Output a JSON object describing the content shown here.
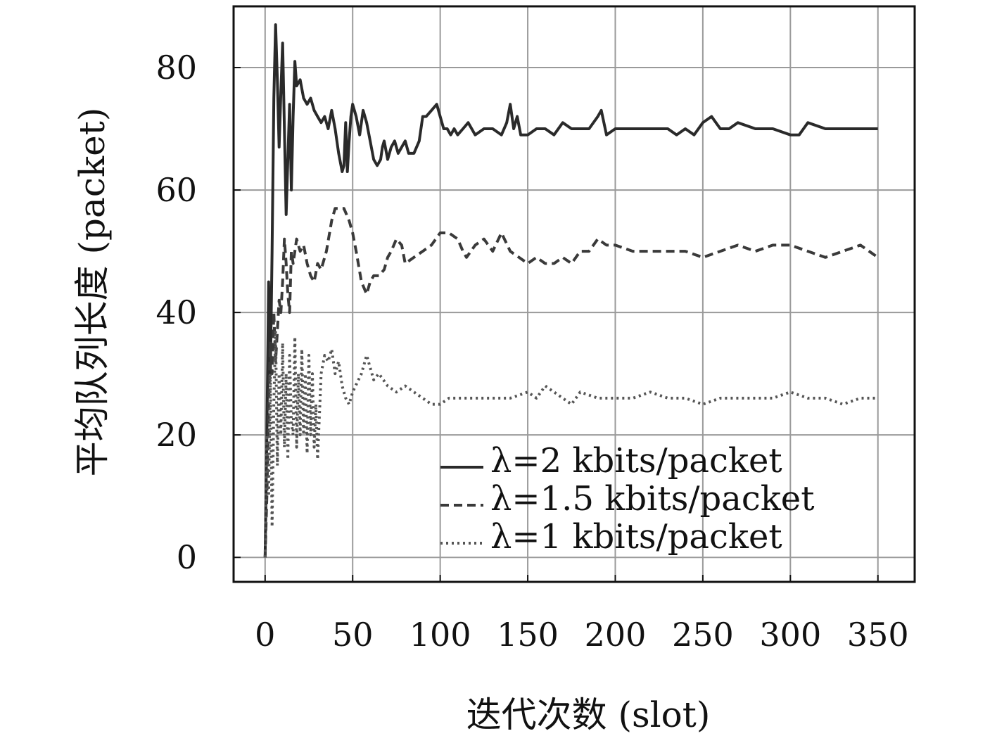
{
  "chart_data": {
    "type": "line",
    "xlabel": "迭代次数 (slot)",
    "ylabel": "平均队列长度 (packet)",
    "xlim": [
      -18,
      371
    ],
    "ylim": [
      -4,
      90
    ],
    "xticks": [
      0,
      50,
      100,
      150,
      200,
      250,
      300,
      350
    ],
    "yticks": [
      0,
      20,
      40,
      60,
      80
    ],
    "xtick_labels": [
      "0",
      "50",
      "100",
      "150",
      "200",
      "250",
      "300",
      "350"
    ],
    "ytick_labels": [
      "0",
      "20",
      "40",
      "60",
      "80"
    ],
    "grid": true,
    "legend_position": "lower-right",
    "series": [
      {
        "name": "λ=2 kbits/packet",
        "style": "solid",
        "color": "#2a2a2a",
        "x": [
          0,
          1,
          2,
          3,
          4,
          5,
          6,
          7,
          8,
          9,
          10,
          11,
          12,
          13,
          14,
          15,
          16,
          17,
          18,
          20,
          22,
          24,
          26,
          28,
          30,
          32,
          34,
          36,
          38,
          40,
          42,
          44,
          45,
          46,
          47,
          48,
          49,
          50,
          52,
          54,
          56,
          58,
          60,
          62,
          64,
          66,
          67,
          68,
          70,
          72,
          74,
          76,
          78,
          80,
          82,
          85,
          88,
          90,
          92,
          95,
          98,
          100,
          102,
          104,
          106,
          108,
          110,
          113,
          116,
          120,
          125,
          130,
          135,
          138,
          140,
          142,
          144,
          146,
          150,
          155,
          160,
          165,
          170,
          175,
          180,
          185,
          190,
          192,
          195,
          200,
          210,
          220,
          230,
          235,
          240,
          245,
          250,
          255,
          260,
          265,
          270,
          280,
          290,
          300,
          305,
          310,
          320,
          330,
          340,
          350
        ],
        "y": [
          0,
          20,
          45,
          30,
          50,
          75,
          87,
          78,
          67,
          76,
          84,
          70,
          56,
          65,
          74,
          60,
          72,
          81,
          77,
          78,
          75,
          74,
          75,
          73,
          72,
          71,
          72,
          70,
          73,
          70,
          66,
          63,
          64,
          71,
          63,
          68,
          72,
          74,
          72,
          69,
          73,
          71,
          68,
          65,
          64,
          65,
          67,
          68,
          65,
          67,
          68,
          66,
          67,
          68,
          66,
          66,
          68,
          72,
          72,
          73,
          74,
          72,
          70,
          70,
          69,
          70,
          69,
          70,
          71,
          69,
          70,
          70,
          69,
          71,
          74,
          70,
          72,
          69,
          69,
          70,
          70,
          69,
          71,
          70,
          70,
          70,
          72,
          73,
          69,
          70,
          70,
          70,
          70,
          69,
          70,
          69,
          71,
          72,
          70,
          70,
          71,
          70,
          70,
          69,
          69,
          71,
          70,
          70,
          70,
          70
        ]
      },
      {
        "name": "λ=1.5 kbits/packet",
        "style": "dashed",
        "color": "#3a3a3a",
        "x": [
          0,
          1,
          2,
          3,
          4,
          5,
          6,
          7,
          8,
          9,
          10,
          11,
          12,
          13,
          14,
          15,
          16,
          18,
          20,
          22,
          24,
          26,
          28,
          30,
          32,
          35,
          38,
          40,
          42,
          45,
          48,
          50,
          52,
          55,
          58,
          60,
          62,
          65,
          68,
          70,
          72,
          75,
          78,
          80,
          85,
          90,
          95,
          100,
          105,
          110,
          113,
          115,
          120,
          125,
          130,
          135,
          140,
          145,
          150,
          155,
          160,
          165,
          170,
          175,
          180,
          185,
          190,
          195,
          200,
          210,
          220,
          230,
          240,
          250,
          260,
          270,
          280,
          290,
          300,
          310,
          320,
          330,
          340,
          350
        ],
        "y": [
          0,
          10,
          25,
          35,
          30,
          40,
          32,
          37,
          42,
          40,
          45,
          52,
          48,
          43,
          40,
          50,
          48,
          52,
          50,
          51,
          48,
          46,
          45,
          48,
          47,
          50,
          55,
          57,
          57,
          57,
          55,
          53,
          50,
          45,
          43,
          45,
          46,
          46,
          47,
          49,
          50,
          52,
          51,
          48,
          49,
          50,
          51,
          53,
          53,
          52,
          50,
          49,
          51,
          52,
          50,
          53,
          50,
          49,
          48,
          49,
          48,
          48,
          49,
          48,
          50,
          50,
          52,
          51,
          51,
          50,
          50,
          50,
          50,
          49,
          50,
          51,
          50,
          51,
          51,
          50,
          49,
          50,
          51,
          49
        ]
      },
      {
        "name": "λ=1 kbits/packet",
        "style": "dotted",
        "color": "#555555",
        "x": [
          0,
          1,
          2,
          3,
          4,
          5,
          6,
          7,
          8,
          9,
          10,
          11,
          12,
          13,
          14,
          15,
          16,
          17,
          18,
          19,
          20,
          21,
          22,
          23,
          24,
          25,
          26,
          27,
          28,
          29,
          30,
          32,
          34,
          36,
          38,
          40,
          42,
          44,
          46,
          48,
          50,
          55,
          58,
          60,
          62,
          65,
          70,
          75,
          80,
          85,
          90,
          95,
          100,
          105,
          110,
          115,
          120,
          130,
          140,
          150,
          155,
          160,
          165,
          170,
          175,
          180,
          190,
          200,
          210,
          220,
          230,
          240,
          250,
          260,
          270,
          280,
          290,
          300,
          310,
          320,
          330,
          340,
          350
        ],
        "y": [
          0,
          20,
          10,
          30,
          5,
          25,
          37,
          15,
          30,
          20,
          35,
          18,
          30,
          16,
          33,
          22,
          20,
          36,
          18,
          30,
          20,
          34,
          20,
          30,
          17,
          33,
          20,
          30,
          18,
          25,
          16,
          30,
          33,
          32,
          34,
          30,
          32,
          28,
          26,
          25,
          27,
          30,
          33,
          31,
          29,
          30,
          28,
          27,
          28,
          27,
          26,
          25,
          25,
          26,
          26,
          26,
          26,
          26,
          26,
          27,
          26,
          28,
          27,
          26,
          25,
          27,
          26,
          26,
          26,
          27,
          26,
          26,
          25,
          26,
          26,
          26,
          26,
          27,
          26,
          26,
          25,
          26,
          26
        ]
      }
    ]
  }
}
